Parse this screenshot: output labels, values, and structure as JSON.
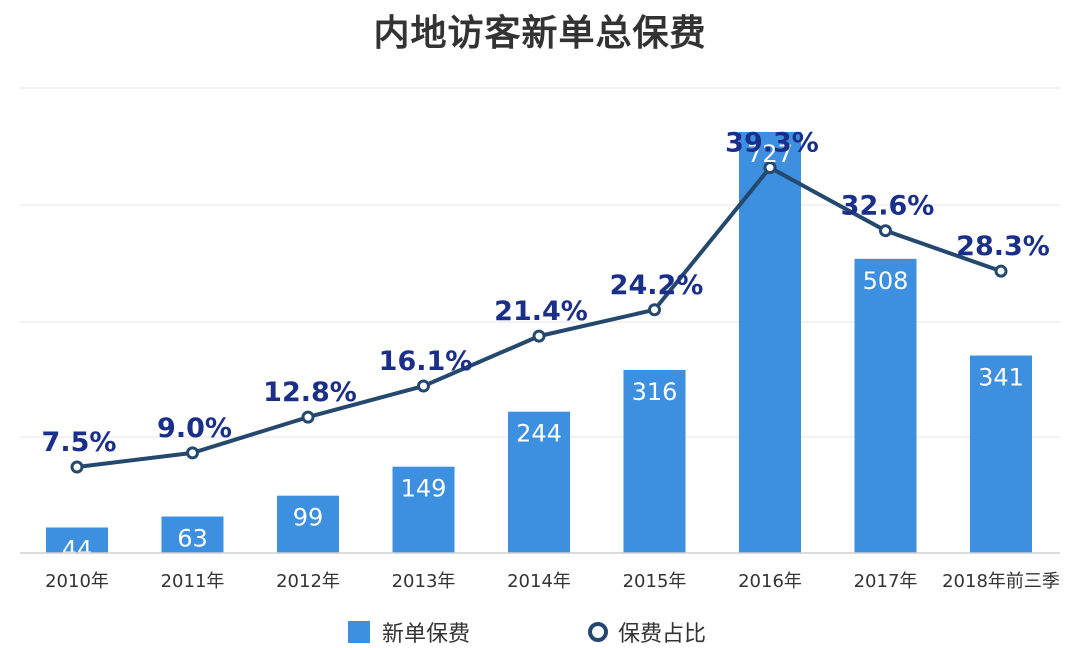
{
  "chart_data": {
    "title": "内地访客新单总保费",
    "type": "bar+line",
    "categories": [
      "2010年",
      "2011年",
      "2012年",
      "2013年",
      "2014年",
      "2015年",
      "2016年",
      "2017年",
      "2018年前三季"
    ],
    "series": [
      {
        "name": "新单保费",
        "type": "bar",
        "values": [
          44,
          63,
          99,
          149,
          244,
          316,
          727,
          508,
          341
        ],
        "labels": [
          "44",
          "63",
          "99",
          "149",
          "244",
          "316",
          "727",
          "508",
          "341"
        ],
        "color": "#3d8fe0"
      },
      {
        "name": "保费占比",
        "type": "line",
        "values": [
          7.5,
          9.0,
          12.8,
          16.1,
          21.4,
          24.2,
          39.3,
          32.6,
          28.3
        ],
        "labels": [
          "7.5%",
          "9.0%",
          "12.8%",
          "16.1%",
          "21.4%",
          "24.2%",
          "39.3%",
          "32.6%",
          "28.3%"
        ],
        "color": "#24486e",
        "label_color": "#1a2f8a"
      }
    ],
    "bar_ylim": [
      0,
      800
    ],
    "line_ylim": [
      0,
      45
    ],
    "grid": true,
    "legend_position": "bottom"
  }
}
